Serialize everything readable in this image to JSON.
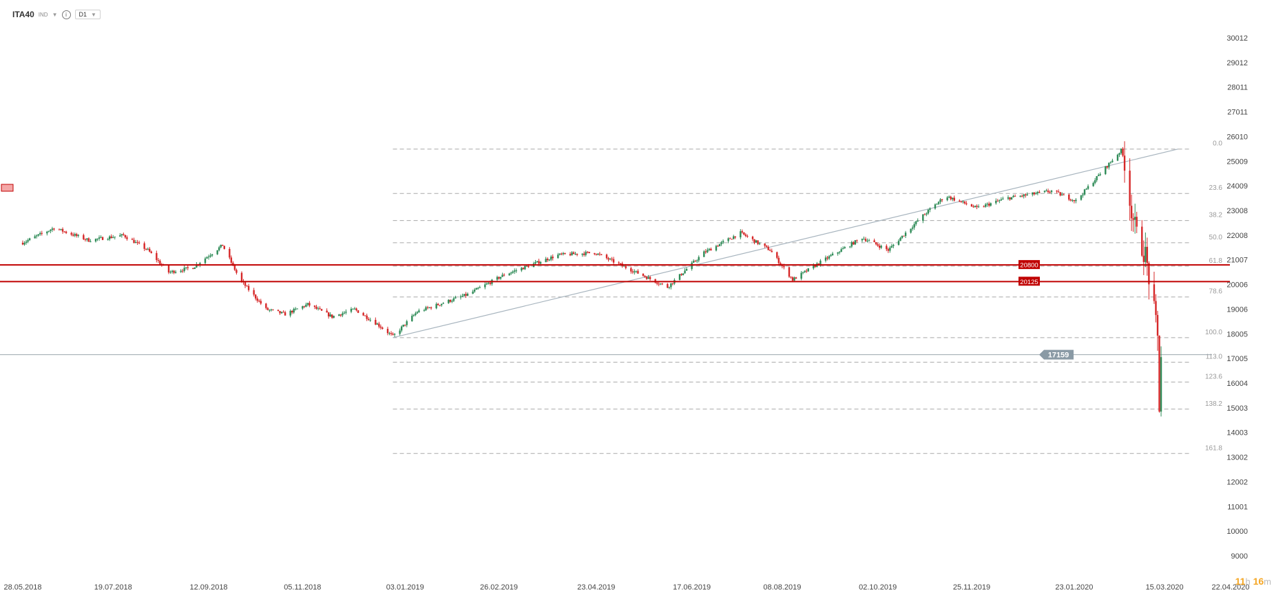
{
  "toolbar": {
    "symbol": "ITA40",
    "category": "IND",
    "info_glyph": "i",
    "timeframe": "D1"
  },
  "timer": {
    "hours": "11",
    "h_unit": "h",
    "minutes": "16",
    "m_unit": "m"
  },
  "colors": {
    "up": "#2e8b57",
    "down": "#d62728",
    "level": "#c00000",
    "price": "#8a9aa5",
    "fib": "#9a9a9a"
  },
  "chart_data": {
    "type": "candlestick",
    "title": "",
    "ylim": [
      9000,
      30012
    ],
    "y_ticks": [
      "30012",
      "29012",
      "28011",
      "27011",
      "26010",
      "25009",
      "24009",
      "23008",
      "22008",
      "21007",
      "20006",
      "19006",
      "18005",
      "17005",
      "16004",
      "15003",
      "14003",
      "13002",
      "12002",
      "11001",
      "10000",
      "9000"
    ],
    "x_ticks": [
      "28.05.2018",
      "19.07.2018",
      "12.09.2018",
      "05.11.2018",
      "03.01.2019",
      "26.02.2019",
      "23.04.2019",
      "17.06.2019",
      "08.08.2019",
      "02.10.2019",
      "25.11.2019",
      "23.01.2020",
      "15.03.2020",
      "22.04.2020"
    ],
    "fib_levels": [
      {
        "label": "0.0",
        "value": 25500
      },
      {
        "label": "23.6",
        "value": 23700
      },
      {
        "label": "38.2",
        "value": 22600
      },
      {
        "label": "50.0",
        "value": 21700
      },
      {
        "label": "61.8",
        "value": 20750
      },
      {
        "label": "78.6",
        "value": 19500
      },
      {
        "label": "100.0",
        "value": 17850
      },
      {
        "label": "113.0",
        "value": 16850
      },
      {
        "label": "123.6",
        "value": 16050
      },
      {
        "label": "138.2",
        "value": 14950
      },
      {
        "label": "161.8",
        "value": 13150
      }
    ],
    "levels": [
      {
        "label": "20800",
        "value": 20800
      },
      {
        "label": "20125",
        "value": 20125
      }
    ],
    "current_price": {
      "label": "17159",
      "value": 17159
    },
    "trendline": {
      "start": {
        "date": "2018-12-27",
        "value": 17850
      },
      "end": {
        "date": "2020-02-28",
        "value": 25500
      }
    },
    "path": [
      {
        "date": "2018-05-28",
        "value": 21700
      },
      {
        "date": "2018-06-15",
        "value": 22300
      },
      {
        "date": "2018-07-05",
        "value": 21800
      },
      {
        "date": "2018-07-25",
        "value": 22000
      },
      {
        "date": "2018-08-08",
        "value": 21400
      },
      {
        "date": "2018-08-20",
        "value": 20500
      },
      {
        "date": "2018-09-03",
        "value": 20700
      },
      {
        "date": "2018-09-20",
        "value": 21600
      },
      {
        "date": "2018-09-30",
        "value": 20200
      },
      {
        "date": "2018-10-15",
        "value": 19000
      },
      {
        "date": "2018-10-26",
        "value": 18800
      },
      {
        "date": "2018-11-08",
        "value": 19200
      },
      {
        "date": "2018-11-22",
        "value": 18700
      },
      {
        "date": "2018-12-05",
        "value": 19000
      },
      {
        "date": "2018-12-18",
        "value": 18400
      },
      {
        "date": "2018-12-27",
        "value": 17900
      },
      {
        "date": "2019-01-10",
        "value": 18900
      },
      {
        "date": "2019-02-08",
        "value": 19600
      },
      {
        "date": "2019-03-01",
        "value": 20400
      },
      {
        "date": "2019-04-01",
        "value": 21200
      },
      {
        "date": "2019-04-22",
        "value": 21300
      },
      {
        "date": "2019-05-10",
        "value": 20700
      },
      {
        "date": "2019-06-03",
        "value": 19900
      },
      {
        "date": "2019-06-24",
        "value": 21300
      },
      {
        "date": "2019-07-15",
        "value": 22100
      },
      {
        "date": "2019-08-01",
        "value": 21400
      },
      {
        "date": "2019-08-14",
        "value": 20200
      },
      {
        "date": "2019-09-01",
        "value": 21000
      },
      {
        "date": "2019-09-23",
        "value": 21900
      },
      {
        "date": "2019-10-08",
        "value": 21400
      },
      {
        "date": "2019-10-28",
        "value": 22800
      },
      {
        "date": "2019-11-10",
        "value": 23600
      },
      {
        "date": "2019-11-28",
        "value": 23100
      },
      {
        "date": "2019-12-15",
        "value": 23500
      },
      {
        "date": "2020-01-10",
        "value": 23800
      },
      {
        "date": "2020-01-24",
        "value": 23400
      },
      {
        "date": "2020-02-12",
        "value": 24900
      },
      {
        "date": "2020-02-19",
        "value": 25450
      },
      {
        "date": "2020-02-21",
        "value": 25000
      },
      {
        "date": "2020-02-24",
        "value": 23400
      },
      {
        "date": "2020-02-28",
        "value": 22000
      },
      {
        "date": "2020-03-04",
        "value": 21200
      },
      {
        "date": "2020-03-09",
        "value": 18900
      },
      {
        "date": "2020-03-11",
        "value": 17800
      },
      {
        "date": "2020-03-12",
        "value": 15100
      },
      {
        "date": "2020-03-13",
        "value": 17159
      }
    ]
  }
}
